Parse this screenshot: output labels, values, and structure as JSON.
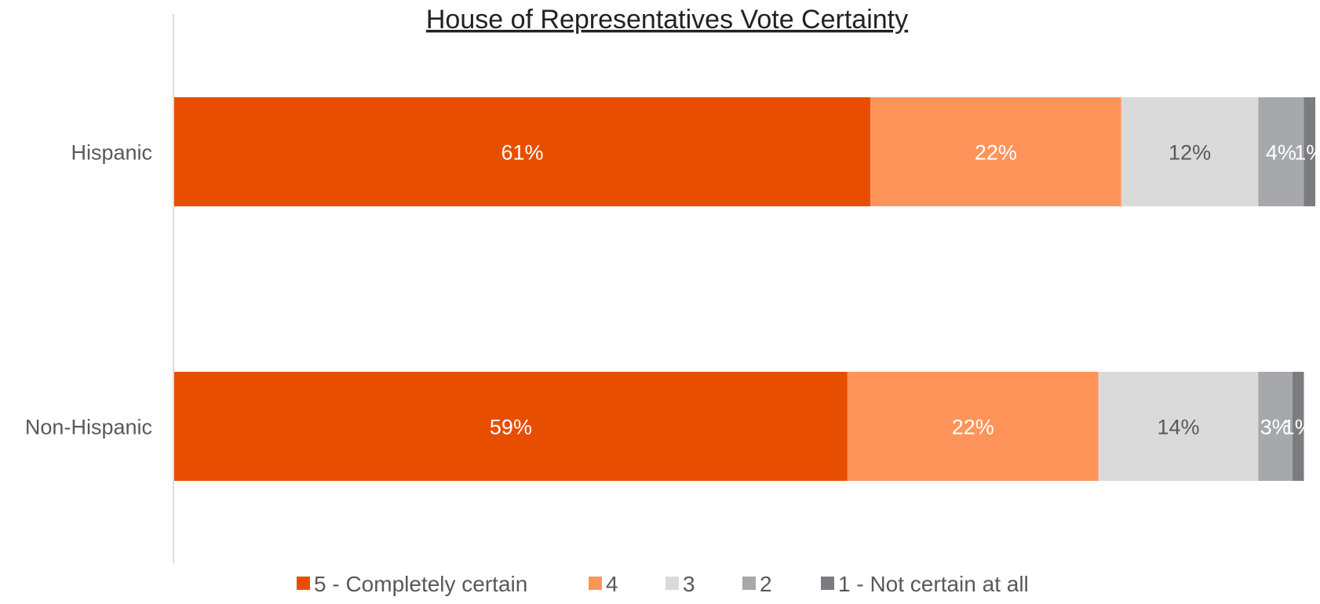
{
  "chart_data": {
    "type": "bar",
    "orientation": "horizontal",
    "stacked": true,
    "title": "House of Representatives Vote Certainty",
    "xlabel": "",
    "ylabel": "",
    "categories": [
      "Hispanic",
      "Non-Hispanic"
    ],
    "xlim": [
      0,
      100
    ],
    "grid": false,
    "legend_position": "bottom",
    "series": [
      {
        "name": "5 - Completely certain",
        "values": [
          61,
          59
        ],
        "labels": [
          "61%",
          "59%"
        ],
        "color": "#E84E00",
        "label_color": "#FFFFFF"
      },
      {
        "name": "4",
        "values": [
          22,
          22
        ],
        "labels": [
          "22%",
          "22%"
        ],
        "color": "#FF945A",
        "label_color": "#FFFFFF"
      },
      {
        "name": "3",
        "values": [
          12,
          14
        ],
        "labels": [
          "12%",
          "14%"
        ],
        "color": "#DADADA",
        "label_color": "#595959"
      },
      {
        "name": "2",
        "values": [
          4,
          3
        ],
        "labels": [
          "4%",
          "3%"
        ],
        "color": "#A6A8AB",
        "label_color": "#FFFFFF"
      },
      {
        "name": "1 - Not certain at all",
        "values": [
          1,
          1
        ],
        "labels": [
          "1%",
          "1%"
        ],
        "color": "#7A7C80",
        "label_color": "#FFFFFF"
      }
    ]
  }
}
